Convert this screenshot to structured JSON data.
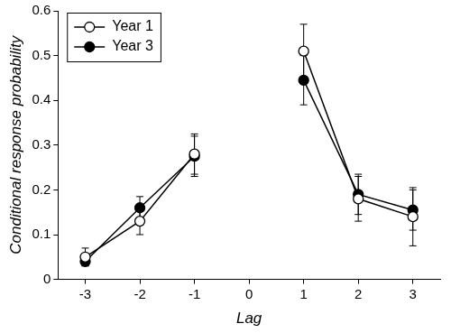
{
  "chart_data": {
    "type": "line",
    "x_label": "Lag",
    "y_label": "Conditional response probability",
    "categories": [
      "-3",
      "-2",
      "-1",
      "0",
      "1",
      "2",
      "3"
    ],
    "series": [
      {
        "name": "Year 1",
        "color": "#000000",
        "marker": "open_circle",
        "line_style": "solid",
        "values": [
          0.05,
          0.13,
          0.28,
          null,
          0.51,
          0.18,
          0.14
        ],
        "errors": [
          0.02,
          0.03,
          0.045,
          null,
          0.06,
          0.05,
          0.065
        ]
      },
      {
        "name": "Year 3",
        "color": "#000000",
        "marker": "circle",
        "line_style": "solid",
        "values": [
          0.04,
          0.16,
          0.275,
          null,
          0.445,
          0.19,
          0.155
        ],
        "errors": [
          0.01,
          0.025,
          0.045,
          null,
          0.055,
          0.045,
          0.045
        ]
      }
    ],
    "ylim": [
      0,
      0.6
    ],
    "yticks": [
      0,
      0.1,
      0.2,
      0.3,
      0.4,
      0.5,
      0.6
    ],
    "grid": false,
    "legend": "top-left"
  }
}
